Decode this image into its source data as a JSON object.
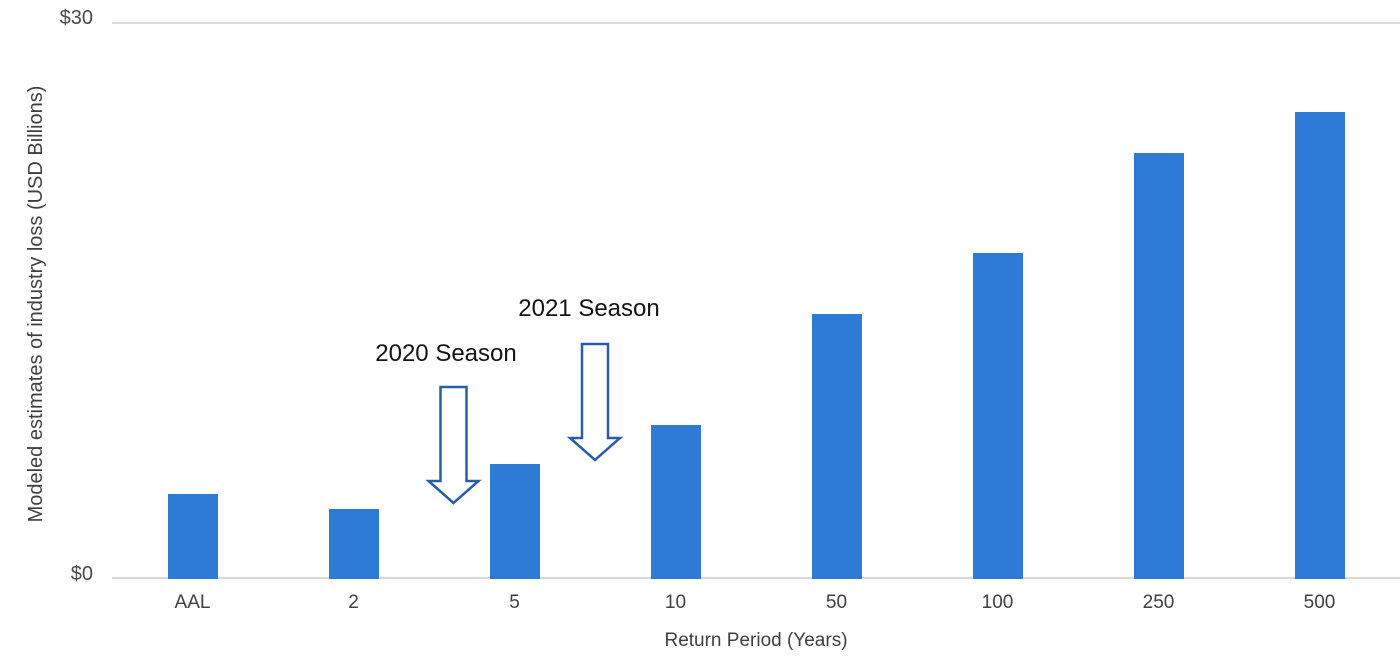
{
  "chart_data": {
    "type": "bar",
    "categories": [
      "AAL",
      "2",
      "5",
      "10",
      "50",
      "100",
      "250",
      "500"
    ],
    "values": [
      4.6,
      3.8,
      6.2,
      8.3,
      14.3,
      17.6,
      23.0,
      25.2
    ],
    "title": "",
    "xlabel": "Return Period (Years)",
    "ylabel": "Modeled estimates of industry loss (USD Billions)",
    "ylim": [
      0,
      30
    ],
    "y_ticks": [
      {
        "value": 0,
        "label": "$0"
      },
      {
        "value": 30,
        "label": "$30"
      }
    ],
    "grid": "horizontal gridlines at $0 baseline and $30 top only",
    "legend_position": "none",
    "bar_color": "#2D7BD5",
    "gridline_color": "#D9D9D9",
    "annotation_arrow_outline_color": "#2A5CAA",
    "annotations": [
      {
        "label": "2020 Season",
        "arrow": "down",
        "points_between_categories": [
          "2",
          "5"
        ]
      },
      {
        "label": "2021 Season",
        "arrow": "down",
        "points_between_categories": [
          "5",
          "10"
        ]
      }
    ]
  }
}
